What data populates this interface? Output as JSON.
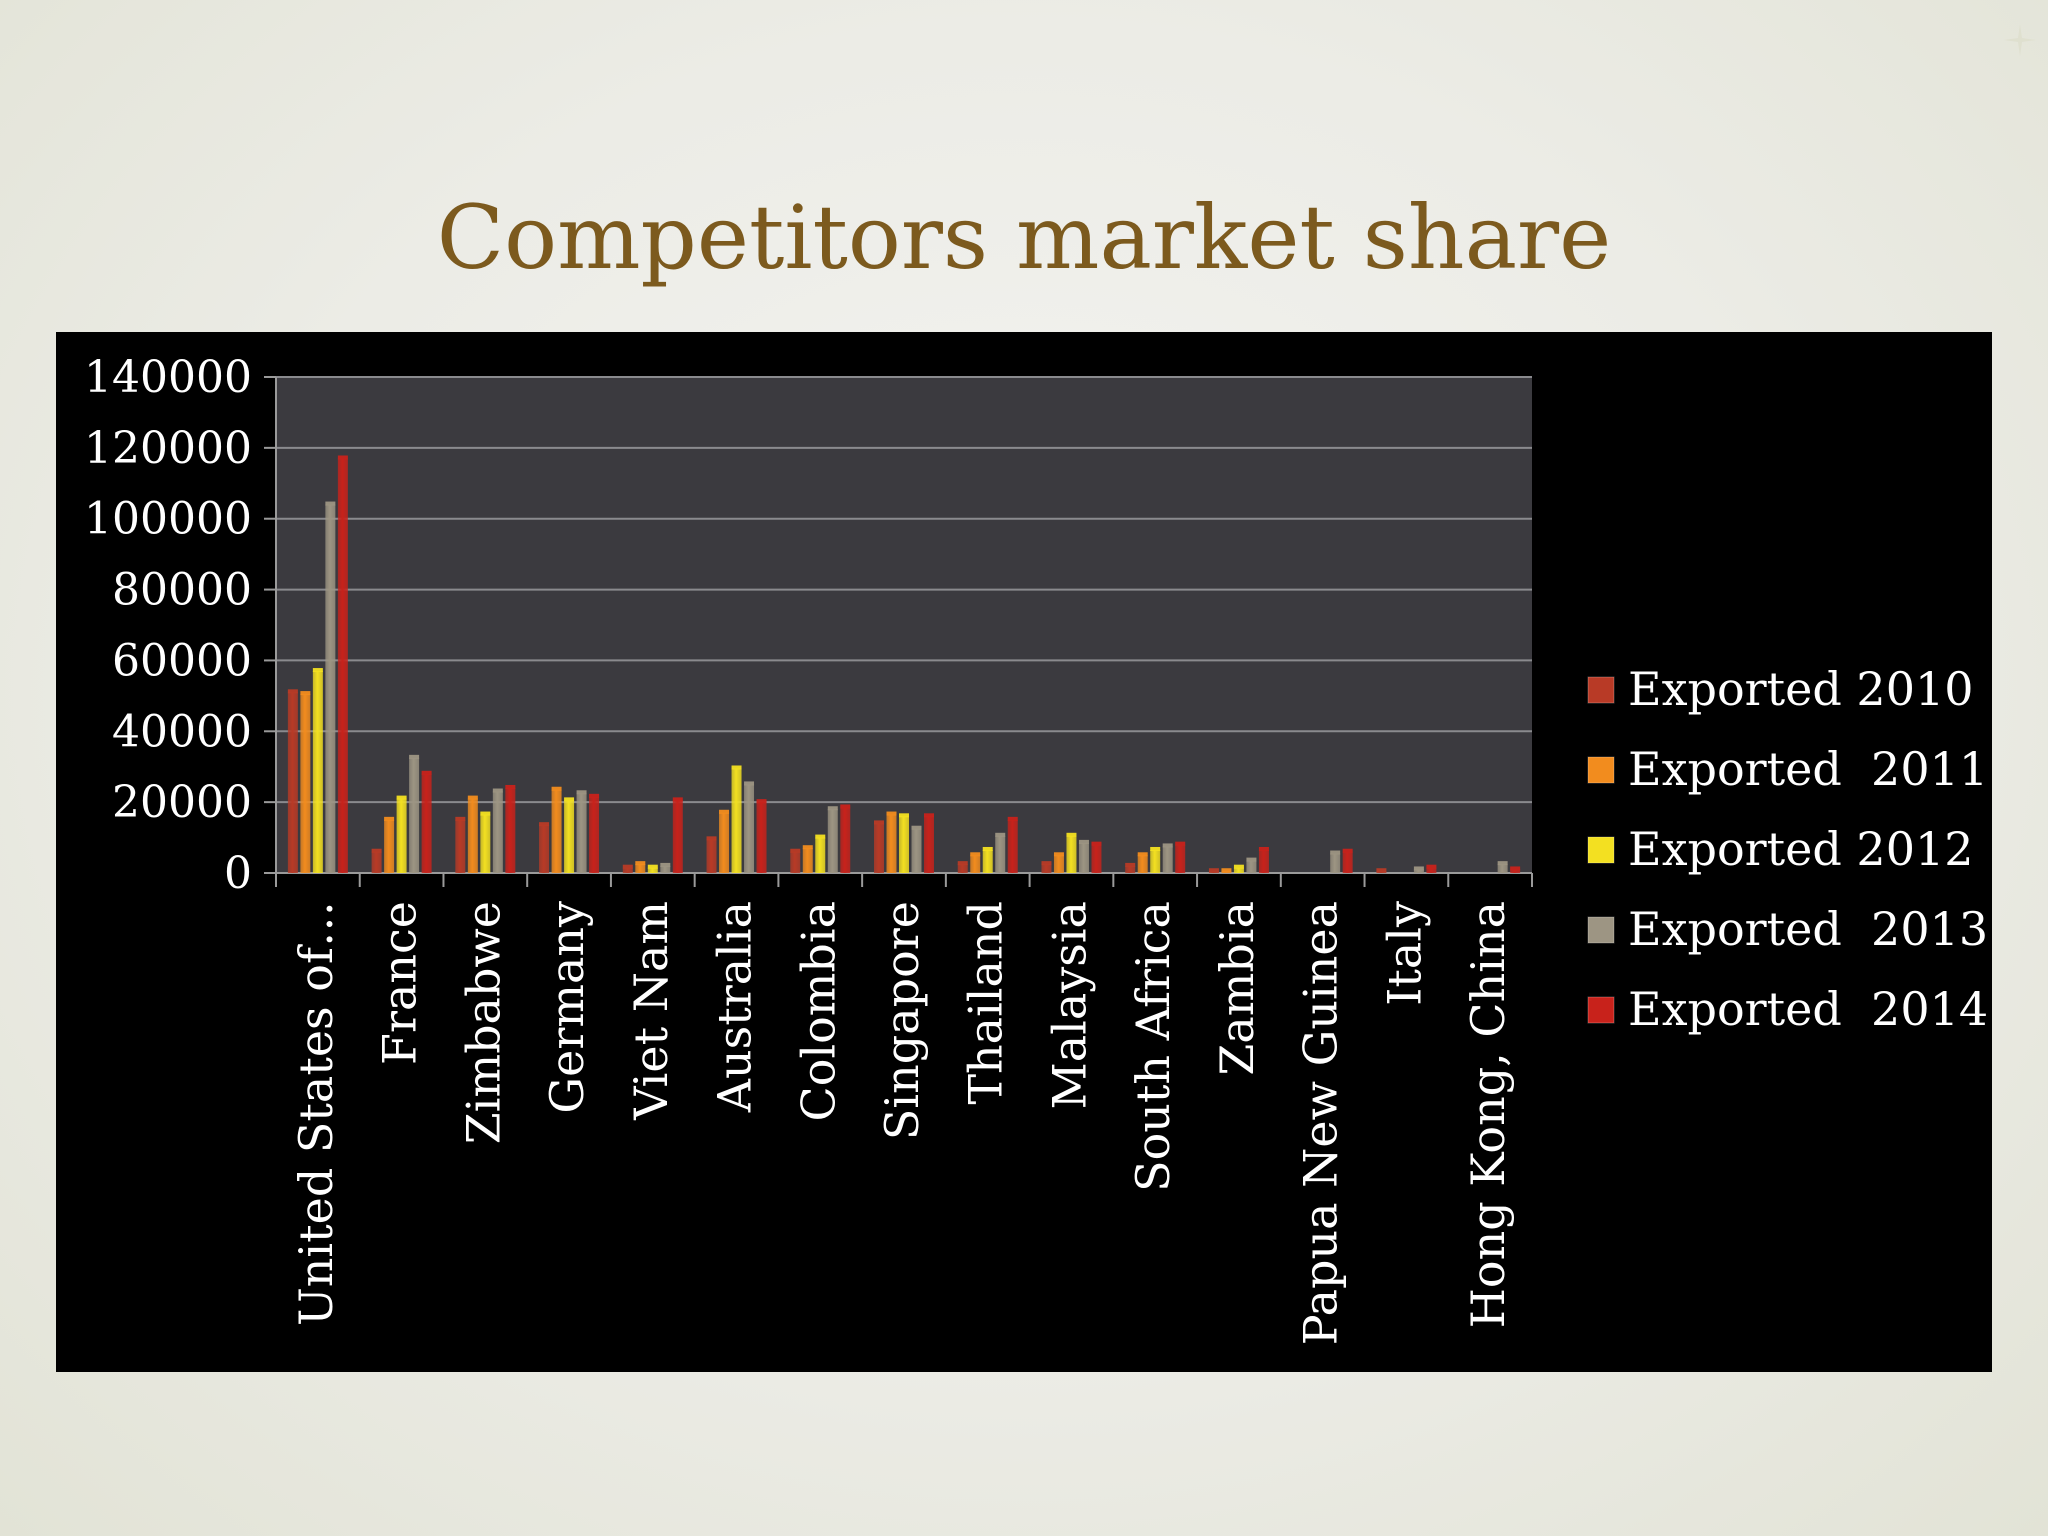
{
  "slide": {
    "title": "Competitors market share"
  },
  "colors": {
    "background": "#ecece6",
    "title": "#7c5a1e",
    "chart_bg": "#000000",
    "plot_bg": "#3b3a3f",
    "text": "#ffffff"
  },
  "chart_data": {
    "type": "bar",
    "title": "",
    "xlabel": "",
    "ylabel": "",
    "ylim": [
      0,
      140000
    ],
    "yticks": [
      "0",
      "20000",
      "40000",
      "60000",
      "80000",
      "100000",
      "120000",
      "140000"
    ],
    "grid": true,
    "legend_position": "right",
    "categories": [
      "United States of…",
      "France",
      "Zimbabwe",
      "Germany",
      "Viet Nam",
      "Australia",
      "Colombia",
      "Singapore",
      "Thailand",
      "Malaysia",
      "South Africa",
      "Zambia",
      "Papua New Guinea",
      "Italy",
      "Hong Kong, China"
    ],
    "series": [
      {
        "name": "Exported 2010",
        "color": "#b83a26",
        "values": [
          51000,
          6000,
          15000,
          13500,
          1500,
          9500,
          6000,
          14000,
          2500,
          2500,
          2000,
          500,
          0,
          500,
          0
        ]
      },
      {
        "name": "Exported  2011",
        "color": "#f28c1e",
        "values": [
          50500,
          15000,
          21000,
          23500,
          2500,
          17000,
          7000,
          16500,
          5000,
          5000,
          5000,
          500,
          0,
          0,
          0
        ]
      },
      {
        "name": "Exported 2012",
        "color": "#f3e021",
        "values": [
          57000,
          21000,
          16500,
          20500,
          1500,
          29500,
          10000,
          16000,
          6500,
          10500,
          6500,
          1500,
          0,
          0,
          0
        ]
      },
      {
        "name": "Exported  2013",
        "color": "#9d9583",
        "values": [
          104000,
          32500,
          23000,
          22500,
          2000,
          25000,
          18000,
          12500,
          10500,
          8500,
          7500,
          3500,
          5500,
          1000,
          2500
        ]
      },
      {
        "name": "Exported  2014",
        "color": "#c8221b",
        "values": [
          117000,
          28000,
          24000,
          21500,
          20500,
          20000,
          18500,
          16000,
          15000,
          8000,
          8000,
          6500,
          6000,
          1500,
          1000
        ]
      }
    ]
  }
}
